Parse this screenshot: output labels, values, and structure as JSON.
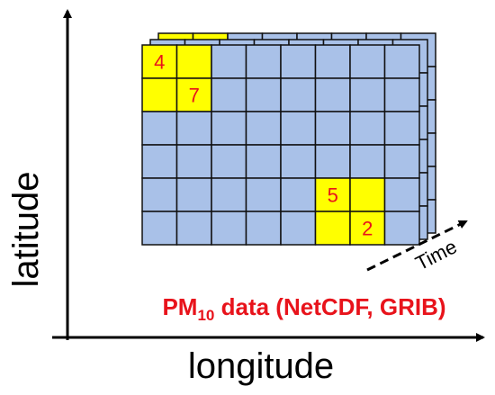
{
  "axes": {
    "y_label": "latitude",
    "x_label": "longitude",
    "time_label": "Time"
  },
  "grid": {
    "cell_labels": [
      "4",
      "7",
      "5",
      "2"
    ]
  },
  "caption": {
    "prefix": "PM",
    "subscript": "10",
    "suffix": " data (NetCDF, GRIB)"
  }
}
